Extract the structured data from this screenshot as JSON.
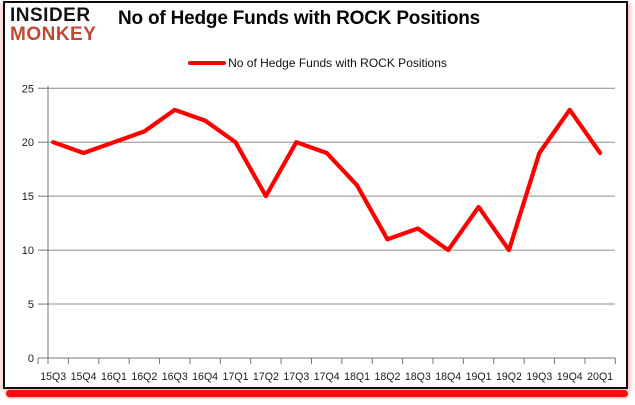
{
  "brand": {
    "line1": "INSIDER",
    "line2": "MONKEY",
    "monkey_color": "#c14a35"
  },
  "title": "No of Hedge Funds with ROCK Positions",
  "legend": {
    "label": "No of Hedge Funds with ROCK Positions",
    "line_color": "#ff0000"
  },
  "chart_data": {
    "type": "line",
    "title": "No of Hedge Funds with ROCK Positions",
    "categories": [
      "15Q3",
      "15Q4",
      "16Q1",
      "16Q2",
      "16Q3",
      "16Q4",
      "17Q1",
      "17Q2",
      "17Q3",
      "17Q4",
      "18Q1",
      "18Q2",
      "18Q3",
      "18Q4",
      "19Q1",
      "19Q2",
      "19Q3",
      "19Q4",
      "20Q1"
    ],
    "series": [
      {
        "name": "No of Hedge Funds with ROCK Positions",
        "color": "#ff0000",
        "values": [
          20,
          19,
          20,
          21,
          23,
          22,
          20,
          15,
          20,
          19,
          16,
          11,
          12,
          10,
          14,
          10,
          19,
          23,
          19
        ]
      }
    ],
    "xlabel": "",
    "ylabel": "",
    "ylim": [
      0,
      25
    ],
    "yticks": [
      0,
      5,
      10,
      15,
      20,
      25
    ],
    "grid": "horizontal",
    "legend_position": "top-center"
  },
  "colors": {
    "grid": "#8c8c8c",
    "axis": "#767676",
    "tick_text": "#1c1c1c",
    "line": "#ff0000",
    "accent_bar": "#fb0b0b",
    "border": "#0d0d0d"
  }
}
